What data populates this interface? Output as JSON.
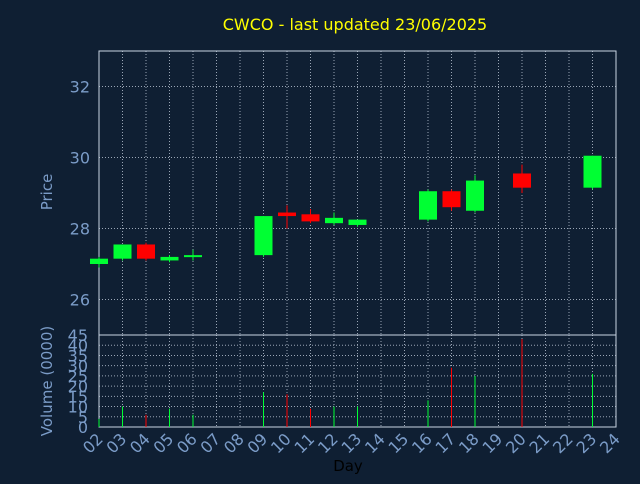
{
  "chart_data": {
    "type": "candlestick",
    "title": "CWCO - last updated 23/06/2025",
    "xlabel": "Day",
    "ylabel": "Price",
    "volume_label": "Volume (0000)",
    "grid": true,
    "colors": {
      "background": "#0f1f33",
      "axis_text": "#7b9cc8",
      "title": "#ffff00",
      "up": "#00ff33",
      "down": "#ff0000",
      "axis_line": "#c8d4e3",
      "grid": "#9aa6b6"
    },
    "price_ylim": [
      25,
      33
    ],
    "price_ticks": [
      "26",
      "28",
      "30",
      "32"
    ],
    "volume_ylim": [
      0,
      45
    ],
    "volume_ticks": [
      "0",
      "5",
      "10",
      "15",
      "20",
      "25",
      "30",
      "35",
      "40",
      "45"
    ],
    "x_ticks": [
      "02",
      "03",
      "04",
      "05",
      "06",
      "07",
      "08",
      "09",
      "10",
      "11",
      "12",
      "13",
      "14",
      "15",
      "16",
      "17",
      "18",
      "19",
      "20",
      "21",
      "22",
      "23",
      "24"
    ],
    "x_range": [
      2,
      24
    ],
    "candles": [
      {
        "day": 2,
        "open": 27.0,
        "high": 27.2,
        "low": 26.9,
        "close": 27.15,
        "volume": 4
      },
      {
        "day": 3,
        "open": 27.15,
        "high": 27.55,
        "low": 27.1,
        "close": 27.55,
        "volume": 10
      },
      {
        "day": 4,
        "open": 27.55,
        "high": 27.6,
        "low": 27.1,
        "close": 27.15,
        "volume": 6
      },
      {
        "day": 5,
        "open": 27.1,
        "high": 27.25,
        "low": 27.05,
        "close": 27.2,
        "volume": 9
      },
      {
        "day": 6,
        "open": 27.2,
        "high": 27.4,
        "low": 27.1,
        "close": 27.25,
        "volume": 6
      },
      {
        "day": 9,
        "open": 27.25,
        "high": 28.35,
        "low": 27.2,
        "close": 28.35,
        "volume": 17
      },
      {
        "day": 10,
        "open": 28.45,
        "high": 28.65,
        "low": 28.0,
        "close": 28.35,
        "volume": 16
      },
      {
        "day": 11,
        "open": 28.4,
        "high": 28.55,
        "low": 28.15,
        "close": 28.2,
        "volume": 9
      },
      {
        "day": 12,
        "open": 28.15,
        "high": 28.45,
        "low": 28.1,
        "close": 28.3,
        "volume": 10
      },
      {
        "day": 13,
        "open": 28.1,
        "high": 28.25,
        "low": 28.05,
        "close": 28.25,
        "volume": 10
      },
      {
        "day": 16,
        "open": 28.25,
        "high": 29.1,
        "low": 28.2,
        "close": 29.05,
        "volume": 13
      },
      {
        "day": 17,
        "open": 29.05,
        "high": 29.1,
        "low": 28.5,
        "close": 28.6,
        "volume": 29
      },
      {
        "day": 18,
        "open": 28.5,
        "high": 29.5,
        "low": 28.45,
        "close": 29.35,
        "volume": 25
      },
      {
        "day": 20,
        "open": 29.55,
        "high": 29.8,
        "low": 29.0,
        "close": 29.15,
        "volume": 43
      },
      {
        "day": 23,
        "open": 29.15,
        "high": 30.05,
        "low": 29.1,
        "close": 30.05,
        "volume": 26
      }
    ]
  }
}
